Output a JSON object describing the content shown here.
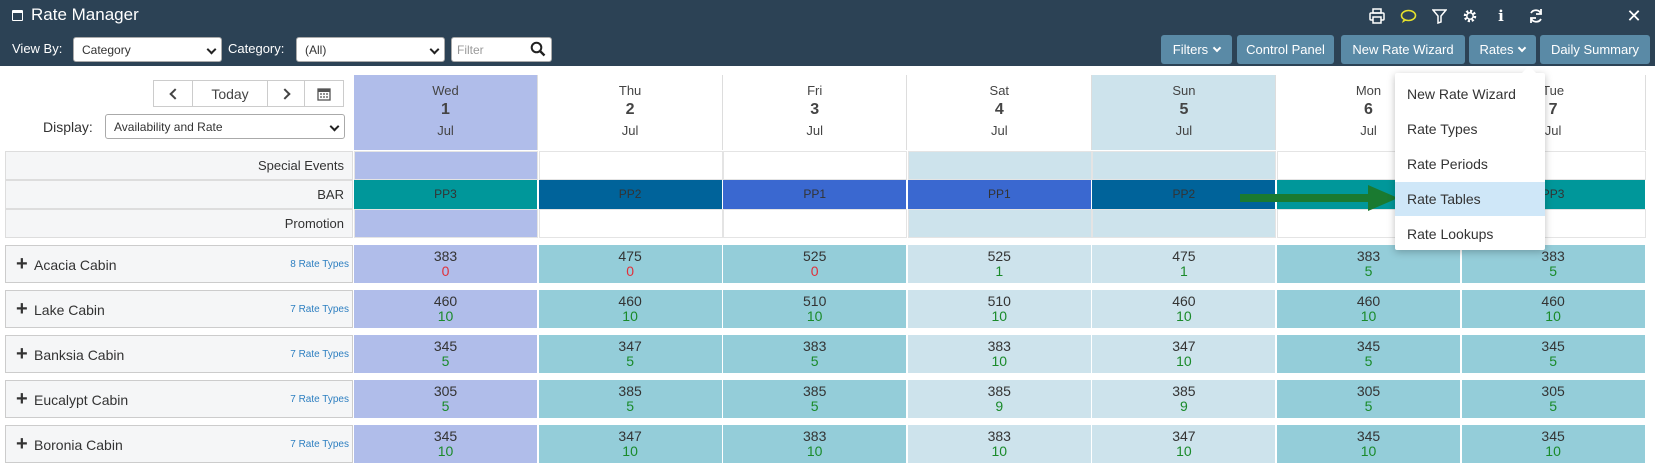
{
  "header": {
    "title": "Rate Manager",
    "view_by_label": "View By:",
    "view_by_value": "Category",
    "category_label": "Category:",
    "category_value": "(All)",
    "filter_placeholder": "Filter"
  },
  "toolbar_icons": [
    "print-icon",
    "comment-icon",
    "filter-icon",
    "gear-icon",
    "info-icon",
    "refresh-icon",
    "close-icon"
  ],
  "buttons": {
    "filters": "Filters",
    "control_panel": "Control Panel",
    "new_rate_wizard": "New Rate Wizard",
    "rates": "Rates",
    "daily_summary": "Daily Summary"
  },
  "nav": {
    "today": "Today"
  },
  "display": {
    "label": "Display:",
    "value": "Availability and Rate"
  },
  "days": [
    {
      "dow": "Wed",
      "date": "1",
      "month": "Jul"
    },
    {
      "dow": "Thu",
      "date": "2",
      "month": "Jul"
    },
    {
      "dow": "Fri",
      "date": "3",
      "month": "Jul"
    },
    {
      "dow": "Sat",
      "date": "4",
      "month": "Jul"
    },
    {
      "dow": "Sun",
      "date": "5",
      "month": "Jul"
    },
    {
      "dow": "Mon",
      "date": "6",
      "month": "Jul"
    },
    {
      "dow": "Tue",
      "date": "7",
      "month": "Jul"
    }
  ],
  "rows": {
    "special_events": "Special Events",
    "bar": "BAR",
    "promotion": "Promotion"
  },
  "bar_values": [
    "PP3",
    "PP2",
    "PP1",
    "PP1",
    "PP2",
    "",
    "PP3"
  ],
  "colors": {
    "topbar": "#2c4255",
    "button": "#5a8aa6",
    "today_col": "#b0bdea",
    "weekday_col": "#94cdd9",
    "weekend_col": "#cde3ec",
    "selected_col": "#94cdd9",
    "pp3": "#00979a",
    "pp2": "#00639a",
    "pp1": "#3a68d0",
    "avail_green": "#1a8a2a",
    "avail_zero": "#e0303a",
    "arrow": "#1a7a30"
  },
  "rooms": [
    {
      "name": "Acacia Cabin",
      "rate_types": "8 Rate Types",
      "rates": [
        "383",
        "475",
        "525",
        "525",
        "475",
        "383",
        "383"
      ],
      "avail": [
        "0",
        "0",
        "0",
        "1",
        "1",
        "5",
        "5"
      ]
    },
    {
      "name": "Lake Cabin",
      "rate_types": "7 Rate Types",
      "rates": [
        "460",
        "460",
        "510",
        "510",
        "460",
        "460",
        "460"
      ],
      "avail": [
        "10",
        "10",
        "10",
        "10",
        "10",
        "10",
        "10"
      ]
    },
    {
      "name": "Banksia Cabin",
      "rate_types": "7 Rate Types",
      "rates": [
        "345",
        "347",
        "383",
        "383",
        "347",
        "345",
        "345"
      ],
      "avail": [
        "5",
        "5",
        "5",
        "10",
        "10",
        "5",
        "5"
      ]
    },
    {
      "name": "Eucalypt Cabin",
      "rate_types": "7 Rate Types",
      "rates": [
        "305",
        "385",
        "385",
        "385",
        "385",
        "305",
        "305"
      ],
      "avail": [
        "5",
        "5",
        "5",
        "9",
        "9",
        "5",
        "5"
      ]
    },
    {
      "name": "Boronia Cabin",
      "rate_types": "7 Rate Types",
      "rates": [
        "345",
        "347",
        "383",
        "383",
        "347",
        "345",
        "345"
      ],
      "avail": [
        "10",
        "10",
        "10",
        "10",
        "10",
        "10",
        "10"
      ]
    }
  ],
  "rates_menu": {
    "items": [
      "New Rate Wizard",
      "Rate Types",
      "Rate Periods",
      "Rate Tables",
      "Rate Lookups"
    ],
    "active_index": 3
  }
}
